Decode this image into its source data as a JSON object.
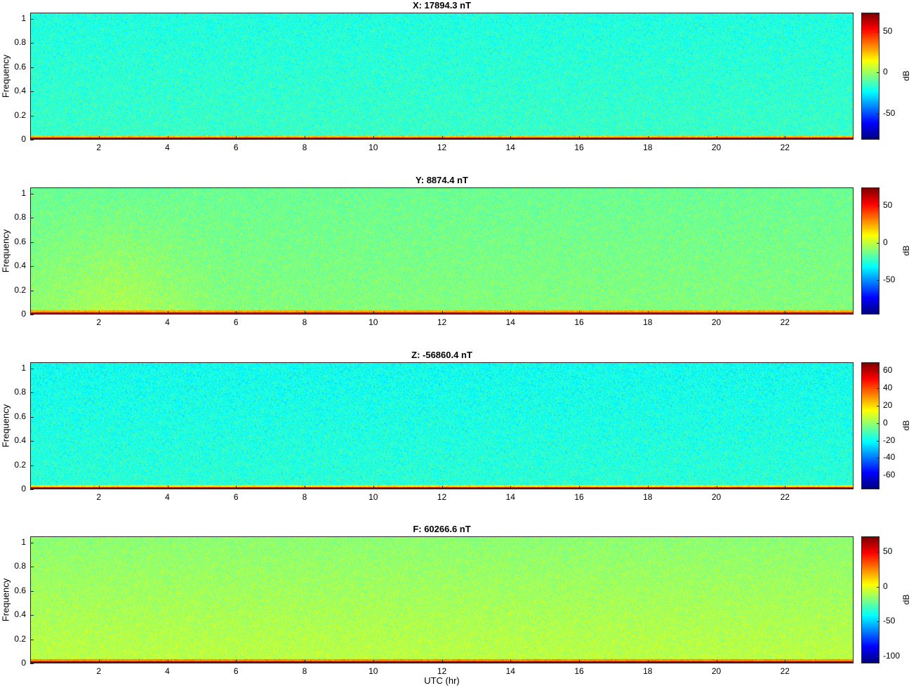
{
  "figure": {
    "xlabel": "UTC (hr)"
  },
  "chart_data": [
    {
      "type": "heatmap",
      "title": "X: 17894.3 nT",
      "ylabel": "Frequency",
      "colorbar_label": "dB",
      "colormap": "jet",
      "xlim": [
        0,
        24
      ],
      "ylim": [
        0,
        1.05
      ],
      "xticks": [
        2,
        4,
        6,
        8,
        10,
        12,
        14,
        16,
        18,
        20,
        22
      ],
      "yticks": [
        0,
        0.2,
        0.4,
        0.6,
        0.8,
        1
      ],
      "clim": [
        -82,
        73
      ],
      "cticks": [
        50,
        0,
        -50
      ],
      "typical_db_low_freq": 70,
      "typical_db_background": -15
    },
    {
      "type": "heatmap",
      "title": "Y: 8874.4 nT",
      "ylabel": "Frequency",
      "colorbar_label": "dB",
      "colormap": "jet",
      "xlim": [
        0,
        24
      ],
      "ylim": [
        0,
        1.05
      ],
      "xticks": [
        2,
        4,
        6,
        8,
        10,
        12,
        14,
        16,
        18,
        20,
        22
      ],
      "yticks": [
        0,
        0.2,
        0.4,
        0.6,
        0.8,
        1
      ],
      "clim": [
        -97,
        75
      ],
      "cticks": [
        50,
        0,
        -50
      ],
      "typical_db_low_freq": 70,
      "typical_db_background": -10
    },
    {
      "type": "heatmap",
      "title": "Z: -56860.4 nT",
      "ylabel": "Frequency",
      "colorbar_label": "dB",
      "colormap": "jet",
      "xlim": [
        0,
        24
      ],
      "ylim": [
        0,
        1.05
      ],
      "xticks": [
        2,
        4,
        6,
        8,
        10,
        12,
        14,
        16,
        18,
        20,
        22
      ],
      "yticks": [
        0,
        0.2,
        0.4,
        0.6,
        0.8,
        1
      ],
      "clim": [
        -76,
        70
      ],
      "cticks": [
        60,
        40,
        20,
        0,
        -20,
        -40,
        -60
      ],
      "typical_db_low_freq": 65,
      "typical_db_background": -15
    },
    {
      "type": "heatmap",
      "title": "F: 60266.6 nT",
      "ylabel": "Frequency",
      "colorbar_label": "dB",
      "colormap": "jet",
      "xlim": [
        0,
        24
      ],
      "ylim": [
        0,
        1.05
      ],
      "xticks": [
        2,
        4,
        6,
        8,
        10,
        12,
        14,
        16,
        18,
        20,
        22
      ],
      "yticks": [
        0,
        0.2,
        0.4,
        0.6,
        0.8,
        1
      ],
      "clim": [
        -110,
        72
      ],
      "cticks": [
        50,
        0,
        -50,
        -100
      ],
      "typical_db_low_freq": 70,
      "typical_db_background": -12
    }
  ]
}
